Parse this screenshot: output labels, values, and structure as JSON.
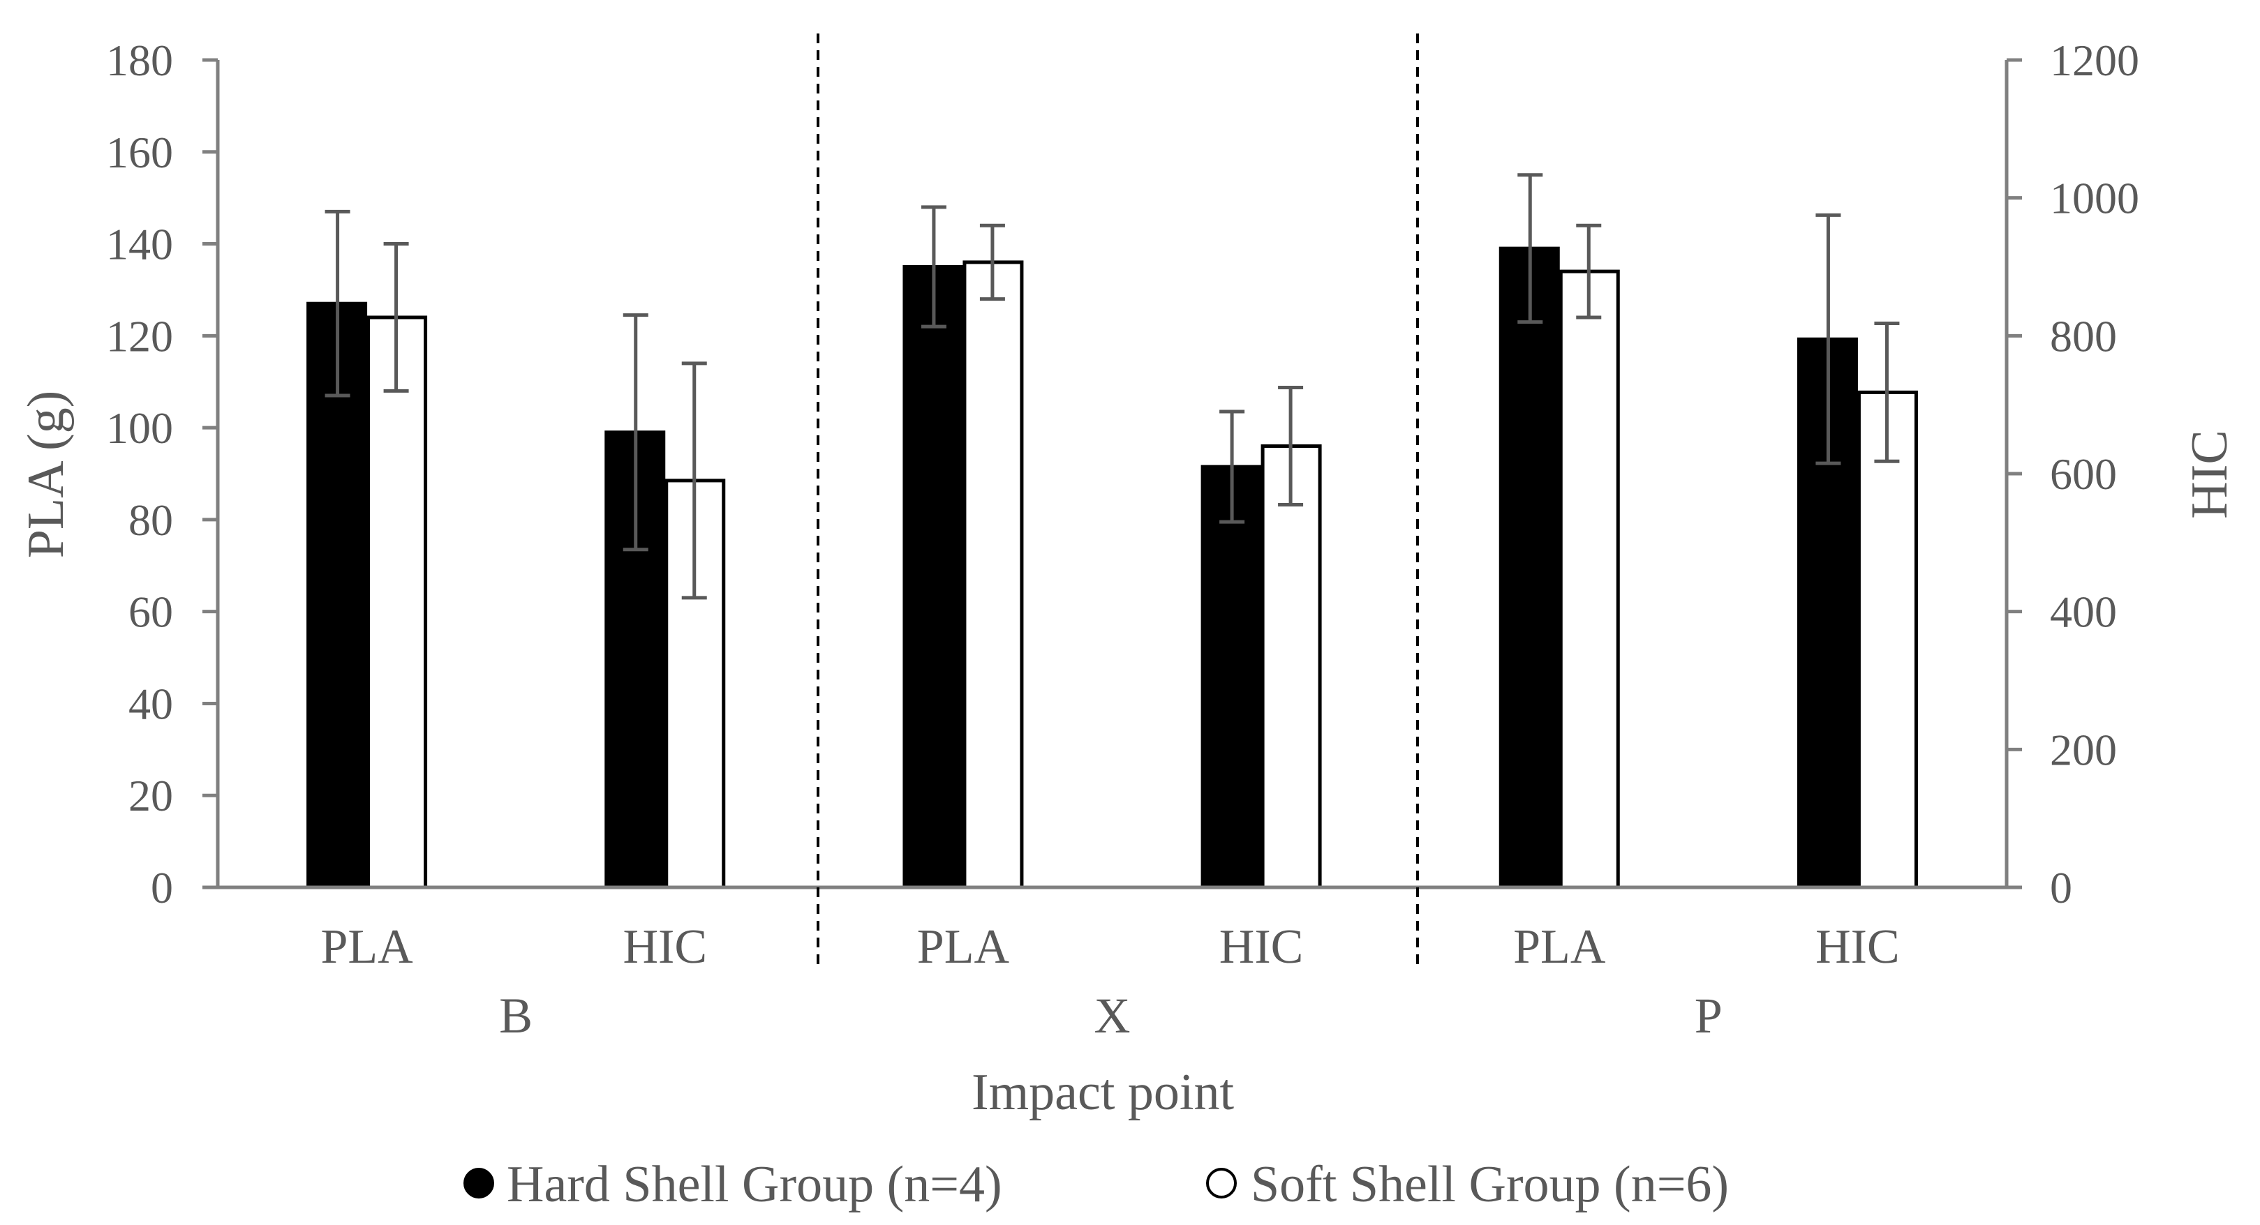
{
  "chart_data": {
    "type": "bar",
    "title": "",
    "xlabel": "Impact point",
    "ylabel": "PLA (g)",
    "y2label": "HIC",
    "ylim": [
      0,
      180
    ],
    "y2lim": [
      0,
      1200
    ],
    "yticks": [
      "0",
      "20",
      "40",
      "60",
      "80",
      "100",
      "120",
      "140",
      "160",
      "180"
    ],
    "y2ticks": [
      "0",
      "200",
      "400",
      "600",
      "800",
      "1000",
      "1200"
    ],
    "groups": [
      "B",
      "X",
      "P"
    ],
    "categories": [
      "PLA",
      "HIC",
      "PLA",
      "HIC",
      "PLA",
      "HIC"
    ],
    "axis_for_category": [
      "left",
      "right",
      "left",
      "right",
      "left",
      "right"
    ],
    "series": [
      {
        "name": "Hard Shell Group (n=4)",
        "color": "#000000",
        "values": [
          127,
          660,
          135,
          610,
          139,
          795
        ],
        "errors": [
          20,
          170,
          13,
          80,
          16,
          180
        ]
      },
      {
        "name": "Soft Shell Group (n=6)",
        "color": "#ffffff",
        "values": [
          124,
          590,
          136,
          640,
          134,
          718
        ],
        "errors": [
          16,
          170,
          8,
          85,
          10,
          100
        ]
      }
    ],
    "legend_position": "bottom",
    "grid": false
  }
}
